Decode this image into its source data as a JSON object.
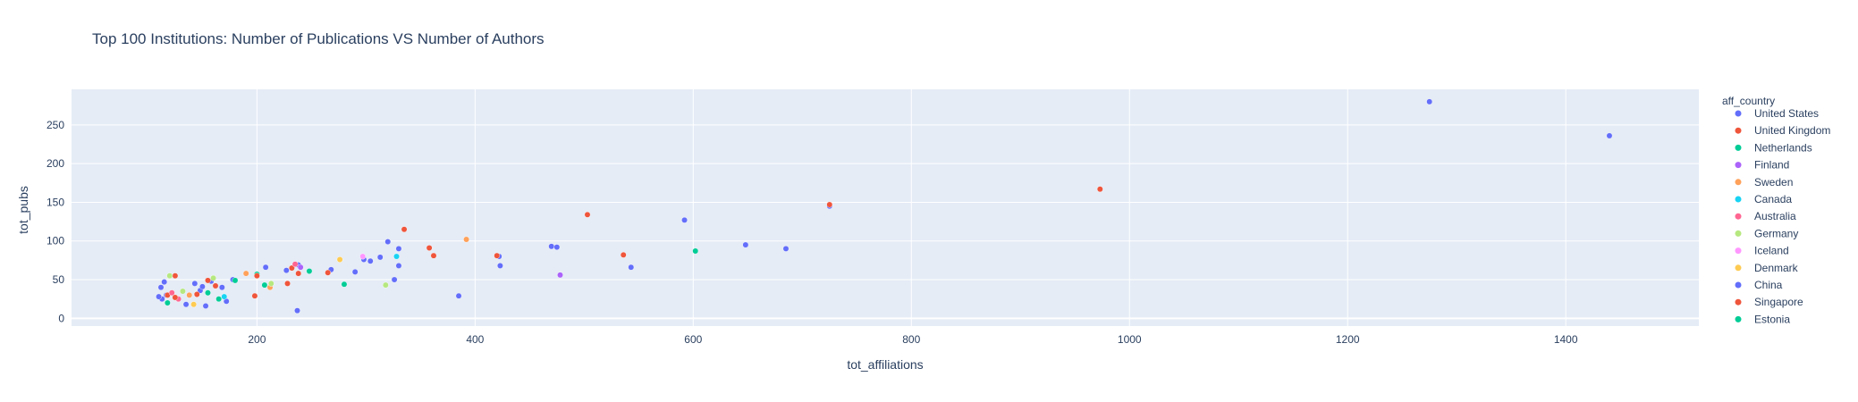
{
  "chart_data": {
    "type": "scatter",
    "title": "Top 100 Institutions: Number of Publications VS Number of Authors",
    "xlabel": "tot_affiliations",
    "ylabel": "tot_pubs",
    "xlim": [
      30,
      1522
    ],
    "ylim": [
      -10,
      296
    ],
    "xticks": [
      200,
      400,
      600,
      800,
      1000,
      1200,
      1400
    ],
    "yticks": [
      0,
      50,
      100,
      150,
      200,
      250
    ],
    "grid": true,
    "legend_title": "aff_country",
    "legend_position": "right",
    "series": [
      {
        "name": "United States",
        "color": "#636efa",
        "points": [
          [
            1275,
            280
          ],
          [
            1440,
            236
          ],
          [
            725,
            145
          ],
          [
            592,
            127
          ],
          [
            648,
            95
          ],
          [
            685,
            90
          ],
          [
            470,
            93
          ],
          [
            475,
            92
          ],
          [
            543,
            66
          ],
          [
            422,
            80
          ],
          [
            423,
            68
          ],
          [
            330,
            90
          ],
          [
            320,
            99
          ],
          [
            313,
            79
          ],
          [
            304,
            74
          ],
          [
            290,
            60
          ],
          [
            298,
            76
          ],
          [
            326,
            50
          ],
          [
            330,
            68
          ],
          [
            237,
            10
          ],
          [
            227,
            62
          ],
          [
            238,
            69
          ],
          [
            208,
            66
          ],
          [
            115,
            47
          ],
          [
            112,
            40
          ],
          [
            113,
            25
          ],
          [
            117,
            30
          ],
          [
            135,
            18
          ],
          [
            143,
            45
          ],
          [
            148,
            36
          ],
          [
            153,
            16
          ],
          [
            158,
            48
          ],
          [
            168,
            40
          ],
          [
            172,
            22
          ],
          [
            178,
            50
          ],
          [
            268,
            63
          ],
          [
            385,
            29
          ]
        ]
      },
      {
        "name": "United Kingdom",
        "color": "#EF553B",
        "points": [
          [
            973,
            167
          ],
          [
            725,
            147
          ],
          [
            503,
            134
          ],
          [
            536,
            82
          ],
          [
            420,
            81
          ],
          [
            335,
            115
          ],
          [
            358,
            91
          ],
          [
            362,
            81
          ],
          [
            228,
            45
          ],
          [
            232,
            65
          ],
          [
            238,
            58
          ],
          [
            265,
            59
          ],
          [
            198,
            29
          ],
          [
            145,
            31
          ],
          [
            125,
            55
          ],
          [
            118,
            30
          ],
          [
            155,
            49
          ],
          [
            162,
            42
          ]
        ]
      },
      {
        "name": "Netherlands",
        "color": "#00cc96",
        "points": [
          [
            602,
            87
          ],
          [
            248,
            61
          ],
          [
            200,
            57
          ],
          [
            207,
            43
          ],
          [
            280,
            44
          ],
          [
            165,
            25
          ],
          [
            180,
            49
          ]
        ]
      },
      {
        "name": "Finland",
        "color": "#ab63fa",
        "points": [
          [
            478,
            56
          ],
          [
            240,
            66
          ]
        ]
      },
      {
        "name": "Sweden",
        "color": "#FFA15A",
        "points": [
          [
            392,
            102
          ],
          [
            190,
            58
          ],
          [
            212,
            40
          ],
          [
            138,
            30
          ]
        ]
      },
      {
        "name": "Canada",
        "color": "#19d3f3",
        "points": [
          [
            328,
            80
          ],
          [
            170,
            28
          ]
        ]
      },
      {
        "name": "Australia",
        "color": "#FF6692",
        "points": [
          [
            235,
            70
          ],
          [
            128,
            25
          ],
          [
            122,
            33
          ]
        ]
      },
      {
        "name": "Germany",
        "color": "#B6E880",
        "points": [
          [
            318,
            43
          ],
          [
            120,
            55
          ],
          [
            132,
            35
          ],
          [
            160,
            52
          ],
          [
            213,
            45
          ]
        ]
      },
      {
        "name": "Iceland",
        "color": "#FF97FF",
        "points": [
          [
            297,
            80
          ]
        ]
      },
      {
        "name": "Denmark",
        "color": "#FECB52",
        "points": [
          [
            276,
            76
          ],
          [
            142,
            18
          ]
        ]
      },
      {
        "name": "China",
        "color": "#636efa",
        "points": [
          [
            110,
            28
          ],
          [
            150,
            41
          ]
        ]
      },
      {
        "name": "Singapore",
        "color": "#EF553B",
        "points": [
          [
            200,
            55
          ],
          [
            125,
            27
          ]
        ]
      },
      {
        "name": "Estonia",
        "color": "#00cc96",
        "points": [
          [
            118,
            20
          ],
          [
            155,
            33
          ]
        ]
      }
    ]
  }
}
